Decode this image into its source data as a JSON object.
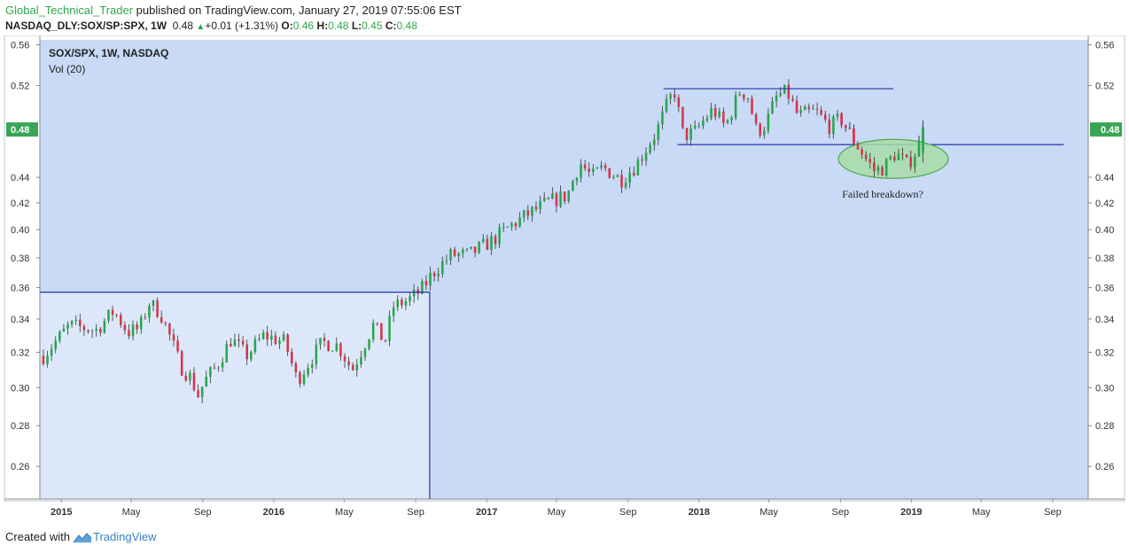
{
  "header": {
    "author": "Global_Technical_Trader",
    "published": " published on TradingView.com, January 27, 2019 07:55:06 EST",
    "symbol": "NASDAQ_DLY:SOX/SP:SPX, 1W",
    "last": "0.48",
    "change": "+0.01 (+1.31%)",
    "o_label": "O:",
    "o_value": "0.46",
    "h_label": "H:",
    "h_value": "0.48",
    "l_label": "L:",
    "l_value": "0.45",
    "c_label": "C:",
    "c_value": "0.48"
  },
  "footer": {
    "created_with": "Created with",
    "brand": "TradingView"
  },
  "colors": {
    "background": "#c8daf5",
    "left_zone": "#dce8fa",
    "up_candle": "#26a64a",
    "down_candle": "#d7344a",
    "trend_line": "#2233aa",
    "ellipse_fill": "#a8dca8",
    "ellipse_stroke": "#4aaa4a",
    "price_tag": "#3aa655"
  },
  "chart_data": {
    "type": "candlestick",
    "title": "SOX/SPX, 1W, NASDAQ",
    "subtitle": "Vol (20)",
    "y_scale": "log",
    "ylim": [
      0.245,
      0.565
    ],
    "y_ticks": [
      "0.56",
      "0.52",
      "0.48",
      "0.44",
      "0.42",
      "0.40",
      "0.38",
      "0.36",
      "0.34",
      "0.32",
      "0.30",
      "0.28",
      "0.26"
    ],
    "current_price": "0.48",
    "x_ticks": [
      "2015",
      "May",
      "Sep",
      "2016",
      "May",
      "Sep",
      "2017",
      "May",
      "Sep",
      "2018",
      "May",
      "Sep",
      "2019",
      "May",
      "Sep"
    ],
    "x_tick_dates": [
      "2015-01-01",
      "2015-05-01",
      "2015-09-01",
      "2016-01-01",
      "2016-05-01",
      "2016-09-01",
      "2017-01-01",
      "2017-05-01",
      "2017-09-01",
      "2018-01-01",
      "2018-05-01",
      "2018-09-01",
      "2019-01-01",
      "2019-05-01",
      "2019-09-01"
    ],
    "xlim": [
      "2014-11-25",
      "2019-11-01"
    ],
    "candles_start": "2014-12-01",
    "close_path": [
      [
        "2014-12-01",
        0.318
      ],
      [
        "2015-01-15",
        0.336
      ],
      [
        "2015-03-01",
        0.333
      ],
      [
        "2015-04-01",
        0.345
      ],
      [
        "2015-04-25",
        0.332
      ],
      [
        "2015-05-15",
        0.334
      ],
      [
        "2015-06-01",
        0.35
      ],
      [
        "2015-06-20",
        0.344
      ],
      [
        "2015-07-10",
        0.326
      ],
      [
        "2015-07-25",
        0.312
      ],
      [
        "2015-08-10",
        0.306
      ],
      [
        "2015-08-24",
        0.296
      ],
      [
        "2015-09-05",
        0.304
      ],
      [
        "2015-09-25",
        0.312
      ],
      [
        "2015-10-20",
        0.328
      ],
      [
        "2015-11-15",
        0.318
      ],
      [
        "2015-12-15",
        0.33
      ],
      [
        "2016-01-20",
        0.326
      ],
      [
        "2016-02-10",
        0.304
      ],
      [
        "2016-03-01",
        0.314
      ],
      [
        "2016-03-25",
        0.326
      ],
      [
        "2016-04-20",
        0.324
      ],
      [
        "2016-05-15",
        0.31
      ],
      [
        "2016-06-01",
        0.322
      ],
      [
        "2016-06-20",
        0.336
      ],
      [
        "2016-07-10",
        0.326
      ],
      [
        "2016-07-25",
        0.348
      ],
      [
        "2016-08-20",
        0.352
      ],
      [
        "2016-09-10",
        0.358
      ],
      [
        "2016-10-01",
        0.37
      ],
      [
        "2016-11-01",
        0.382
      ],
      [
        "2016-12-01",
        0.382
      ],
      [
        "2017-01-10",
        0.392
      ],
      [
        "2017-02-15",
        0.404
      ],
      [
        "2017-03-15",
        0.412
      ],
      [
        "2017-04-15",
        0.42
      ],
      [
        "2017-05-20",
        0.426
      ],
      [
        "2017-06-10",
        0.452
      ],
      [
        "2017-07-01",
        0.44
      ],
      [
        "2017-07-20",
        0.448
      ],
      [
        "2017-08-20",
        0.438
      ],
      [
        "2017-09-15",
        0.45
      ],
      [
        "2017-10-20",
        0.478
      ],
      [
        "2017-11-10",
        0.506
      ],
      [
        "2017-11-20",
        0.514
      ],
      [
        "2017-12-05",
        0.474
      ],
      [
        "2017-12-25",
        0.478
      ],
      [
        "2018-01-25",
        0.498
      ],
      [
        "2018-02-15",
        0.482
      ],
      [
        "2018-03-12",
        0.514
      ],
      [
        "2018-03-25",
        0.512
      ],
      [
        "2018-04-10",
        0.478
      ],
      [
        "2018-04-25",
        0.484
      ],
      [
        "2018-05-15",
        0.51
      ],
      [
        "2018-06-01",
        0.514
      ],
      [
        "2018-06-20",
        0.492
      ],
      [
        "2018-07-20",
        0.496
      ],
      [
        "2018-08-15",
        0.482
      ],
      [
        "2018-09-01",
        0.49
      ],
      [
        "2018-09-25",
        0.47
      ],
      [
        "2018-10-15",
        0.455
      ],
      [
        "2018-10-30",
        0.445
      ],
      [
        "2018-11-15",
        0.448
      ],
      [
        "2018-12-05",
        0.46
      ],
      [
        "2018-12-25",
        0.45
      ],
      [
        "2019-01-10",
        0.462
      ],
      [
        "2019-01-25",
        0.482
      ]
    ],
    "annotations": {
      "resistance_top": {
        "start": "2017-11-01",
        "end": "2018-12-01",
        "y": 0.517
      },
      "neckline": {
        "start": "2017-11-25",
        "end": "2019-09-20",
        "y": 0.467
      },
      "left_box": {
        "start": "2014-11-25",
        "end": "2016-09-25",
        "top": 0.357
      },
      "ellipse": {
        "center": "2018-12-01",
        "y": 0.455,
        "label": "Failed breakdown?"
      }
    }
  }
}
